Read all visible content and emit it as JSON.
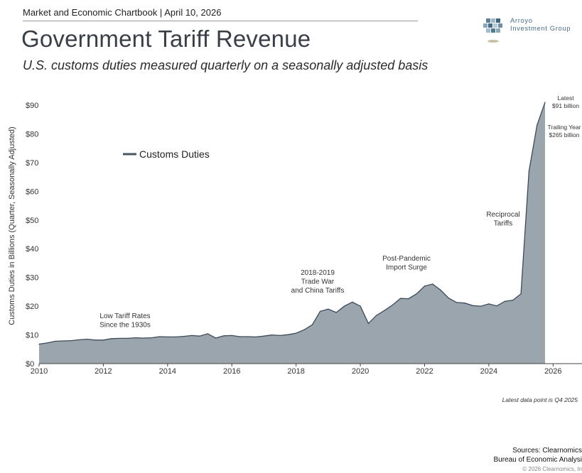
{
  "header": {
    "kicker": "Market and Economic Chartbook | April 10, 2026",
    "title": "Government Tariff Revenue",
    "subtitle": "U.S. customs duties measured quarterly on a seasonally adjusted basis"
  },
  "logo": {
    "line1": "Arroyo",
    "line2": "Investment Group"
  },
  "colors": {
    "area_fill": "#9aa5ae",
    "area_stroke": "#3d4a5a",
    "axis": "#555555"
  },
  "footer": {
    "note": "Latest data point is Q4 2025",
    "sources_line1": "Sources: Clearnomics",
    "sources_line2": "Bureau of Economic Analysi",
    "copyright": "© 2026 Clearnomics, In"
  },
  "chart_data": {
    "type": "area",
    "ylabel": "Customs Duties in Billions (Quarter, Seasonally Adjusted)",
    "xlabel": "",
    "xlim": [
      2010,
      2026.9
    ],
    "ylim": [
      0,
      90
    ],
    "x_ticks": [
      "2010",
      "2012",
      "2014",
      "2016",
      "2018",
      "2020",
      "2022",
      "2024",
      "2026"
    ],
    "y_ticks": [
      "$0",
      "$10",
      "$20",
      "$30",
      "$40",
      "$50",
      "$60",
      "$70",
      "$80",
      "$90"
    ],
    "grid": false,
    "legend": "upper-left",
    "series": [
      {
        "name": "Customs Duties",
        "x": [
          2010.0,
          2010.25,
          2010.5,
          2010.75,
          2011.0,
          2011.25,
          2011.5,
          2011.75,
          2012.0,
          2012.25,
          2012.5,
          2012.75,
          2013.0,
          2013.25,
          2013.5,
          2013.75,
          2014.0,
          2014.25,
          2014.5,
          2014.75,
          2015.0,
          2015.25,
          2015.5,
          2015.75,
          2016.0,
          2016.25,
          2016.5,
          2016.75,
          2017.0,
          2017.25,
          2017.5,
          2017.75,
          2018.0,
          2018.25,
          2018.5,
          2018.75,
          2019.0,
          2019.25,
          2019.5,
          2019.75,
          2020.0,
          2020.25,
          2020.5,
          2020.75,
          2021.0,
          2021.25,
          2021.5,
          2021.75,
          2022.0,
          2022.25,
          2022.5,
          2022.75,
          2023.0,
          2023.25,
          2023.5,
          2023.75,
          2024.0,
          2024.25,
          2024.5,
          2024.75,
          2025.0,
          2025.25,
          2025.5,
          2025.75
        ],
        "values": [
          6.8,
          7.2,
          7.8,
          7.9,
          8.0,
          8.3,
          8.5,
          8.2,
          8.2,
          8.7,
          8.8,
          8.8,
          9.0,
          8.9,
          9.0,
          9.4,
          9.3,
          9.3,
          9.5,
          9.8,
          9.6,
          10.4,
          8.9,
          9.7,
          9.8,
          9.4,
          9.4,
          9.3,
          9.6,
          10.0,
          9.8,
          10.1,
          10.6,
          11.8,
          13.5,
          18.2,
          19.0,
          17.8,
          20.0,
          21.4,
          20.0,
          14.0,
          16.8,
          18.5,
          20.4,
          22.7,
          22.6,
          24.3,
          27.0,
          27.7,
          25.6,
          22.8,
          21.3,
          21.1,
          20.2,
          20.0,
          20.8,
          20.1,
          21.7,
          22.1,
          24.3,
          67.0,
          83.0,
          91.0
        ]
      }
    ],
    "annotations": [
      {
        "id": "low-tariff",
        "lines": [
          "Low Tariff Rates",
          "Since the 1930s"
        ]
      },
      {
        "id": "trade-war",
        "lines": [
          "2018-2019",
          "Trade War",
          "and China Tariffs"
        ]
      },
      {
        "id": "post-pandemic",
        "lines": [
          "Post-Pandemic",
          "Import Surge"
        ]
      },
      {
        "id": "reciprocal",
        "lines": [
          "Reciprocal",
          "Tariffs"
        ]
      },
      {
        "id": "latest",
        "lines": [
          "Latest",
          "$91 billion"
        ]
      },
      {
        "id": "trailing",
        "lines": [
          "Trailing Year",
          "$265 billion"
        ]
      }
    ]
  }
}
